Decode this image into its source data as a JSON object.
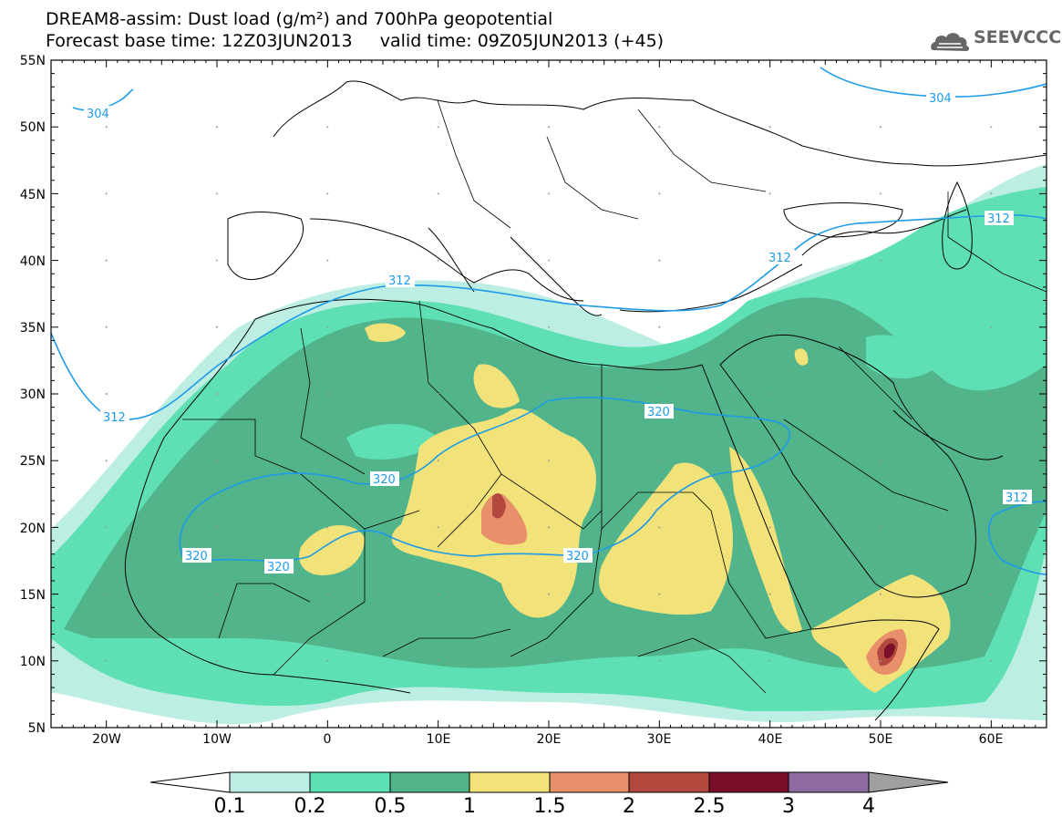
{
  "title": {
    "line1": "DREAM8-assim: Dust load (g/m²) and 700hPa geopotential",
    "line2": "Forecast base time: 12Z03JUN2013     valid time: 09Z05JUN2013 (+45)"
  },
  "logo": {
    "text": "SEEVCCC",
    "icon": "cloud-icon"
  },
  "map": {
    "lon_range": [
      -25,
      65
    ],
    "lat_range": [
      5,
      55
    ],
    "lat_ticks": [
      "5N",
      "10N",
      "15N",
      "20N",
      "25N",
      "30N",
      "35N",
      "40N",
      "45N",
      "50N",
      "55N"
    ],
    "lon_ticks": [
      "20W",
      "10W",
      "0",
      "10E",
      "20E",
      "30E",
      "40E",
      "50E",
      "60E"
    ],
    "contour_labels": [
      "304",
      "304",
      "312",
      "312",
      "312",
      "312",
      "320",
      "320",
      "320",
      "320",
      "320",
      "312"
    ]
  },
  "colorbar": {
    "labels": [
      "0.1",
      "0.2",
      "0.5",
      "1",
      "1.5",
      "2",
      "2.5",
      "3",
      "4"
    ],
    "colors": [
      "#ffffff",
      "#bdeee4",
      "#5ee0b4",
      "#52b48a",
      "#f2e27a",
      "#e8906a",
      "#b3483e",
      "#7a0f2a",
      "#8e6aa0",
      "#a0a0a0"
    ]
  }
}
